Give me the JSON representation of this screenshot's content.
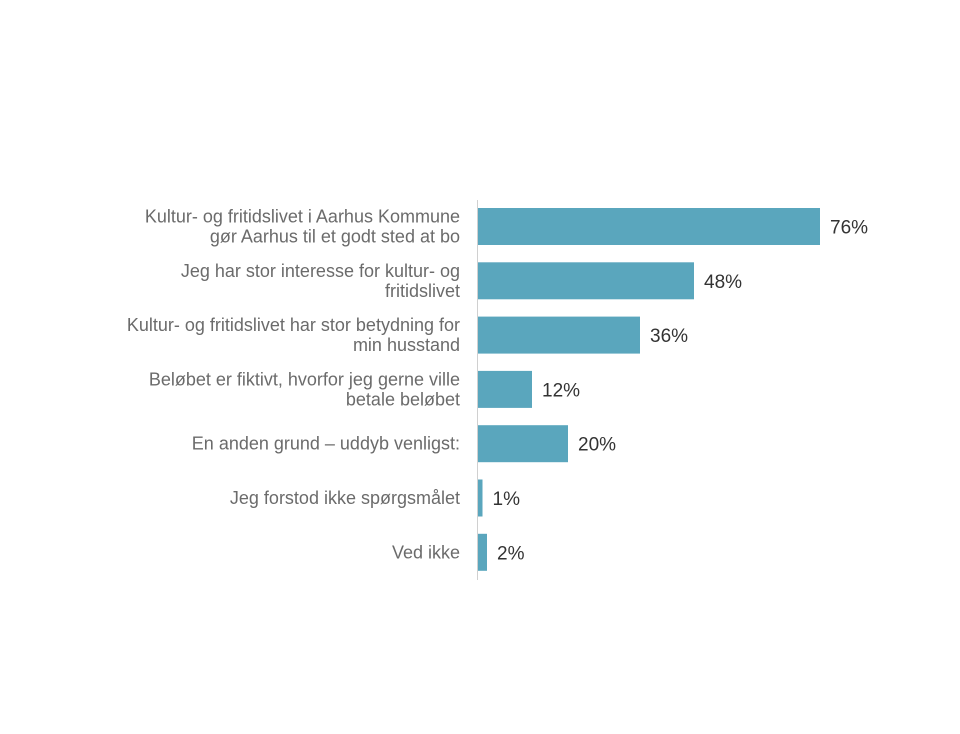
{
  "chart_data": {
    "type": "bar",
    "orientation": "horizontal",
    "title": "",
    "xlabel": "",
    "ylabel": "",
    "grid": false,
    "legend": "none",
    "bar_color": "#5aa6bd",
    "xlim": [
      0,
      100
    ],
    "categories": [
      [
        "Kultur- og fritidslivet i Aarhus Kommune",
        "gør Aarhus til et godt sted at bo"
      ],
      [
        "Jeg har stor interesse for kultur- og",
        "fritidslivet"
      ],
      [
        "Kultur- og fritidslivet har stor betydning for",
        "min husstand"
      ],
      [
        "Beløbet er fiktivt, hvorfor jeg gerne ville",
        "betale beløbet"
      ],
      [
        "En anden grund – uddyb venligst:"
      ],
      [
        "Jeg forstod ikke spørgsmålet"
      ],
      [
        "Ved ikke"
      ]
    ],
    "values": [
      76,
      48,
      36,
      12,
      20,
      1,
      2
    ],
    "value_labels": [
      "76%",
      "48%",
      "36%",
      "12%",
      "20%",
      "1%",
      "2%"
    ]
  }
}
